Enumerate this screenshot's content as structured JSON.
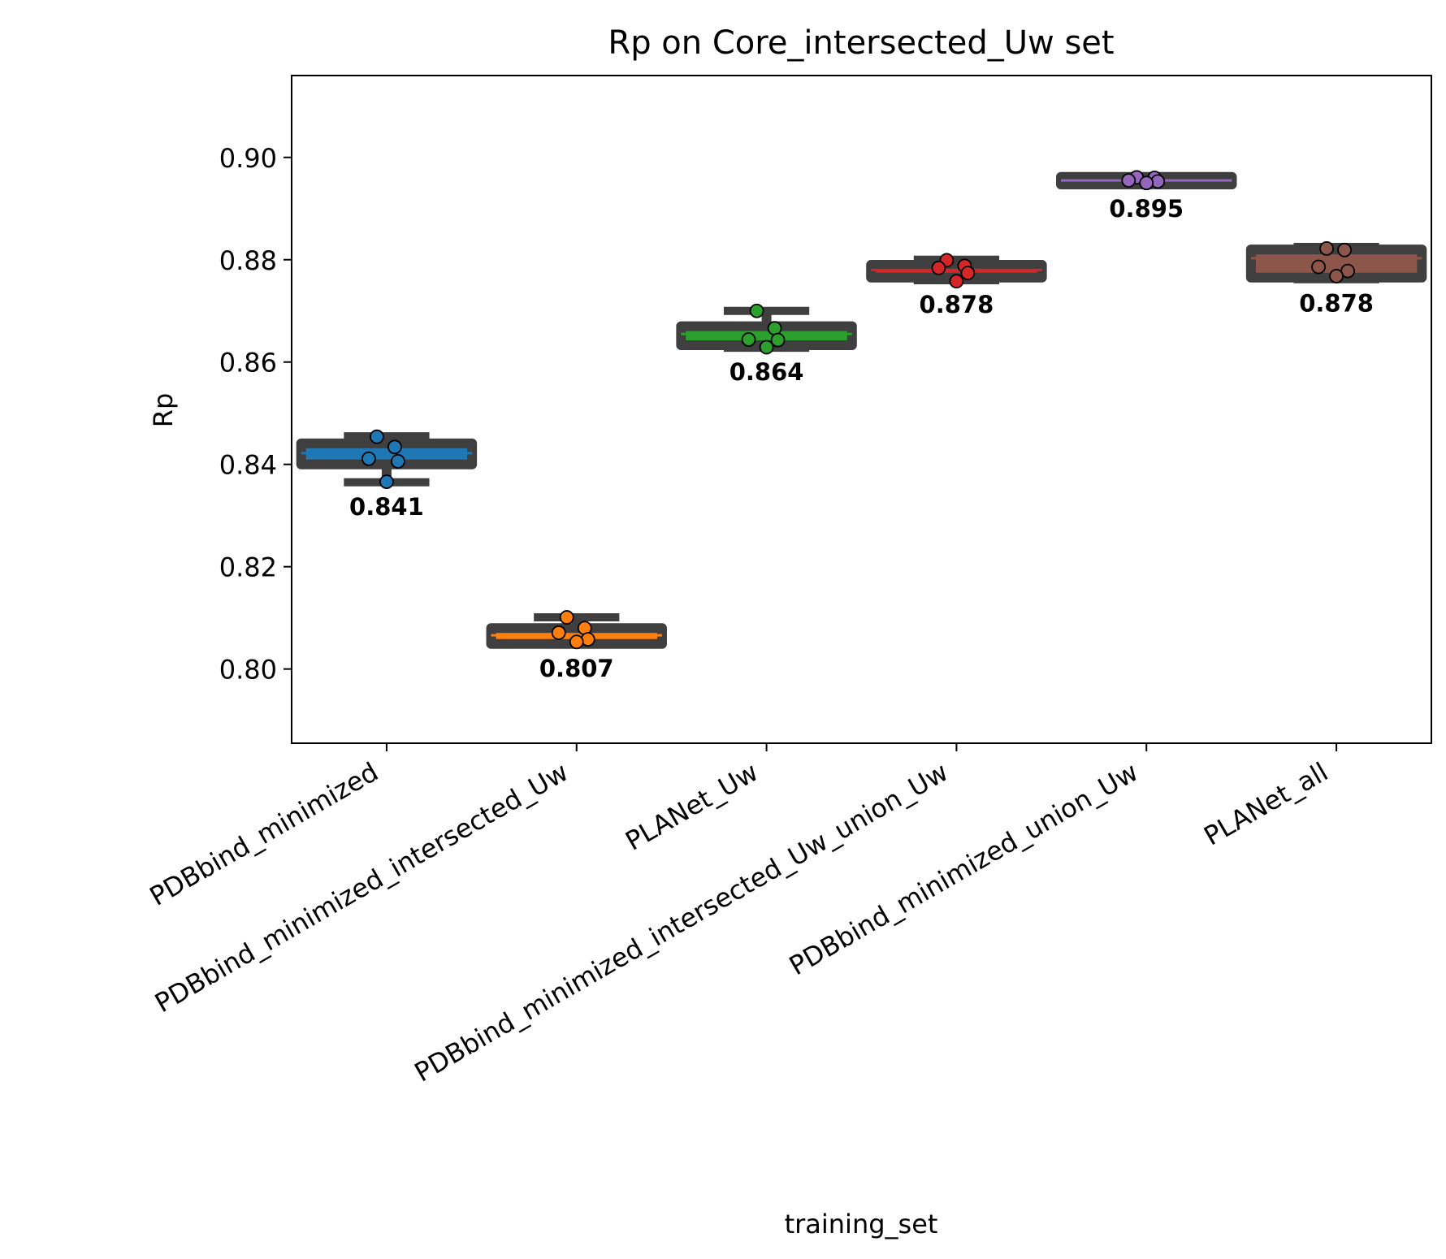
{
  "chart_data": {
    "type": "box",
    "title": "Rp on Core_intersected_Uw set",
    "xlabel": "training_set",
    "ylabel": "Rp",
    "ylim": [
      0.7855,
      0.916
    ],
    "yticks": [
      "0.80",
      "0.82",
      "0.84",
      "0.86",
      "0.88",
      "0.90"
    ],
    "ytick_values": [
      0.8,
      0.82,
      0.84,
      0.86,
      0.88,
      0.9
    ],
    "grid": false,
    "categories": [
      "PDBbind_minimized",
      "PDBbind_minimized_intersected_Uw",
      "PLANet_Uw",
      "PDBbind_minimized_intersected_Uw_union_Uw",
      "PDBbind_minimized_union_Uw",
      "PLANet_all"
    ],
    "boxes": [
      {
        "q1": 0.84,
        "median": 0.8422,
        "q3": 0.8441,
        "whisker_low": 0.8365,
        "whisker_high": 0.8455,
        "color": "#1f77b4",
        "points": [
          0.8454,
          0.8434,
          0.8411,
          0.8406,
          0.8366
        ],
        "mean_label": "0.841"
      },
      {
        "q1": 0.8049,
        "median": 0.8066,
        "q3": 0.808,
        "whisker_low": 0.8049,
        "whisker_high": 0.8101,
        "color": "#ff7f0e",
        "points": [
          0.8101,
          0.808,
          0.8071,
          0.8058,
          0.8053
        ],
        "mean_label": "0.807"
      },
      {
        "q1": 0.8633,
        "median": 0.8655,
        "q3": 0.867,
        "whisker_low": 0.8628,
        "whisker_high": 0.87,
        "color": "#2ca02c",
        "points": [
          0.87,
          0.8666,
          0.8644,
          0.8643,
          0.8629
        ],
        "mean_label": "0.864"
      },
      {
        "q1": 0.8765,
        "median": 0.878,
        "q3": 0.879,
        "whisker_low": 0.876,
        "whisker_high": 0.88,
        "color": "#d62728",
        "points": [
          0.8799,
          0.8788,
          0.8784,
          0.8774,
          0.8758
        ],
        "mean_label": "0.878"
      },
      {
        "q1": 0.8947,
        "median": 0.8955,
        "q3": 0.8962,
        "whisker_low": 0.8947,
        "whisker_high": 0.8962,
        "color": "#9467bd",
        "points": [
          0.8961,
          0.896,
          0.8955,
          0.8953,
          0.895
        ],
        "mean_label": "0.895"
      },
      {
        "q1": 0.8765,
        "median": 0.8803,
        "q3": 0.882,
        "whisker_low": 0.8762,
        "whisker_high": 0.8825,
        "color": "#8c564b",
        "points": [
          0.8822,
          0.8819,
          0.8786,
          0.8778,
          0.8768
        ],
        "mean_label": "0.878"
      }
    ],
    "box_edge_color": "#3f3f3f"
  }
}
